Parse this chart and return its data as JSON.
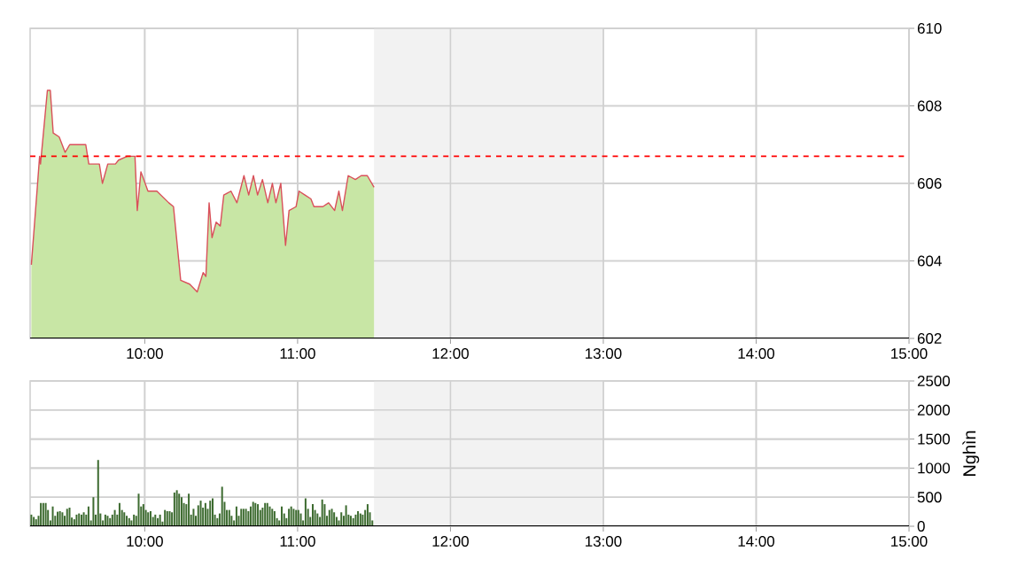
{
  "chart_data": [
    {
      "type": "area",
      "xlim": [
        9.25,
        15
      ],
      "ylim": [
        602,
        610
      ],
      "yticks": [
        602,
        604,
        606,
        608,
        610
      ],
      "xticks": [
        {
          "value": 10,
          "label": "10:00"
        },
        {
          "value": 11,
          "label": "11:00"
        },
        {
          "value": 12,
          "label": "12:00"
        },
        {
          "value": 13,
          "label": "13:00"
        },
        {
          "value": 14,
          "label": "14:00"
        },
        {
          "value": 15,
          "label": "15:00"
        }
      ],
      "grid": true,
      "ref_lines": [
        {
          "axis": "y",
          "value": 606.7,
          "color": "#ff0000",
          "line_style": "dashed"
        }
      ],
      "bands": [
        {
          "axis": "x",
          "from": 11.5,
          "to": 13,
          "color": "#f2f2f2"
        }
      ],
      "x": [
        9.258,
        9.297,
        9.312,
        9.318,
        9.363,
        9.382,
        9.401,
        9.44,
        9.479,
        9.509,
        9.556,
        9.614,
        9.634,
        9.703,
        9.723,
        9.758,
        9.808,
        9.828,
        9.886,
        9.936,
        9.951,
        9.975,
        10.021,
        10.079,
        10.157,
        10.188,
        10.235,
        10.294,
        10.343,
        10.382,
        10.4,
        10.421,
        10.44,
        10.467,
        10.494,
        10.517,
        10.564,
        10.603,
        10.649,
        10.68,
        10.711,
        10.738,
        10.77,
        10.805,
        10.835,
        10.858,
        10.89,
        10.921,
        10.944,
        10.99,
        11.009,
        11.048,
        11.087,
        11.107,
        11.165,
        11.203,
        11.242,
        11.27,
        11.293,
        11.331,
        11.378,
        11.416,
        11.456,
        11.5
      ],
      "series": [
        {
          "color": "#c8e6a5",
          "values": [
            603.9,
            605.9,
            606.7,
            606.5,
            608.4,
            608.4,
            607.3,
            607.2,
            606.8,
            607.0,
            607.0,
            607.0,
            606.5,
            606.5,
            606.0,
            606.5,
            606.5,
            606.6,
            606.7,
            606.7,
            605.3,
            606.3,
            605.8,
            605.8,
            605.5,
            605.4,
            603.5,
            603.4,
            603.2,
            603.7,
            603.6,
            605.5,
            604.6,
            605.0,
            604.9,
            605.7,
            605.8,
            605.5,
            606.2,
            605.7,
            606.2,
            605.7,
            606.1,
            605.5,
            606.0,
            605.5,
            606.0,
            604.4,
            605.3,
            605.4,
            605.8,
            605.7,
            605.6,
            605.4,
            605.4,
            605.5,
            605.3,
            605.8,
            605.3,
            606.2,
            606.1,
            606.2,
            606.2,
            605.9
          ]
        },
        {
          "type": "line",
          "color": "#d9505a",
          "values": [
            603.9,
            605.9,
            606.7,
            606.5,
            608.4,
            608.4,
            607.3,
            607.2,
            606.8,
            607.0,
            607.0,
            607.0,
            606.5,
            606.5,
            606.0,
            606.5,
            606.5,
            606.6,
            606.7,
            606.7,
            605.3,
            606.3,
            605.8,
            605.8,
            605.5,
            605.4,
            603.5,
            603.4,
            603.2,
            603.7,
            603.6,
            605.5,
            604.6,
            605.0,
            604.9,
            605.7,
            605.8,
            605.5,
            606.2,
            605.7,
            606.2,
            605.7,
            606.1,
            605.5,
            606.0,
            605.5,
            606.0,
            604.4,
            605.3,
            605.4,
            605.8,
            605.7,
            605.6,
            605.4,
            605.4,
            605.5,
            605.3,
            605.8,
            605.3,
            606.2,
            606.1,
            606.2,
            606.2,
            605.9
          ]
        }
      ]
    },
    {
      "type": "bar",
      "xlim": [
        9.25,
        15
      ],
      "ylim": [
        0,
        2500
      ],
      "yticks": [
        0,
        500,
        1000,
        1500,
        2000,
        2500
      ],
      "ylabel": "Nghìn",
      "xticks": [
        {
          "value": 10,
          "label": "10:00"
        },
        {
          "value": 11,
          "label": "11:00"
        },
        {
          "value": 12,
          "label": "12:00"
        },
        {
          "value": 13,
          "label": "13:00"
        },
        {
          "value": 14,
          "label": "14:00"
        },
        {
          "value": 15,
          "label": "15:00"
        }
      ],
      "grid": true,
      "bands": [
        {
          "axis": "x",
          "from": 11.5,
          "to": 13,
          "color": "#f2f2f2"
        }
      ],
      "x": [
        9.258,
        9.274,
        9.289,
        9.305,
        9.32,
        9.336,
        9.352,
        9.367,
        9.383,
        9.398,
        9.414,
        9.43,
        9.445,
        9.461,
        9.476,
        9.492,
        9.508,
        9.523,
        9.539,
        9.554,
        9.57,
        9.586,
        9.601,
        9.617,
        9.632,
        9.648,
        9.664,
        9.679,
        9.695,
        9.71,
        9.726,
        9.742,
        9.757,
        9.773,
        9.788,
        9.804,
        9.82,
        9.835,
        9.851,
        9.866,
        9.882,
        9.898,
        9.913,
        9.929,
        9.944,
        9.96,
        9.976,
        9.991,
        10.007,
        10.022,
        10.038,
        10.054,
        10.069,
        10.085,
        10.1,
        10.116,
        10.132,
        10.147,
        10.163,
        10.178,
        10.194,
        10.21,
        10.225,
        10.241,
        10.256,
        10.272,
        10.288,
        10.303,
        10.319,
        10.334,
        10.35,
        10.366,
        10.381,
        10.397,
        10.412,
        10.428,
        10.444,
        10.459,
        10.475,
        10.49,
        10.506,
        10.522,
        10.537,
        10.553,
        10.568,
        10.584,
        10.6,
        10.615,
        10.631,
        10.646,
        10.662,
        10.678,
        10.693,
        10.709,
        10.724,
        10.74,
        10.756,
        10.771,
        10.787,
        10.802,
        10.818,
        10.834,
        10.849,
        10.865,
        10.88,
        10.896,
        10.912,
        10.927,
        10.943,
        10.958,
        10.974,
        10.99,
        11.005,
        11.021,
        11.036,
        11.052,
        11.068,
        11.083,
        11.099,
        11.114,
        11.13,
        11.146,
        11.161,
        11.177,
        11.192,
        11.208,
        11.224,
        11.239,
        11.255,
        11.27,
        11.286,
        11.302,
        11.317,
        11.333,
        11.348,
        11.364,
        11.38,
        11.395,
        11.411,
        11.426,
        11.442,
        11.458,
        11.473,
        11.489
      ],
      "series": [
        {
          "color": "#3d6b30",
          "values": [
            200,
            160,
            120,
            180,
            400,
            400,
            400,
            280,
            100,
            340,
            180,
            250,
            260,
            240,
            180,
            300,
            320,
            150,
            120,
            200,
            220,
            200,
            240,
            200,
            340,
            100,
            500,
            200,
            1140,
            220,
            100,
            200,
            180,
            140,
            200,
            280,
            200,
            400,
            280,
            240,
            180,
            140,
            100,
            200,
            180,
            560,
            340,
            380,
            280,
            240,
            260,
            160,
            200,
            140,
            200,
            80,
            280,
            260,
            260,
            240,
            580,
            620,
            560,
            500,
            400,
            380,
            560,
            200,
            300,
            180,
            360,
            440,
            320,
            400,
            300,
            440,
            480,
            200,
            140,
            220,
            680,
            420,
            280,
            280,
            180,
            100,
            340,
            180,
            300,
            300,
            300,
            260,
            340,
            420,
            400,
            380,
            280,
            320,
            400,
            400,
            340,
            300,
            260,
            140,
            100,
            340,
            220,
            140,
            300,
            340,
            300,
            280,
            280,
            220,
            100,
            480,
            300,
            160,
            380,
            280,
            220,
            160,
            460,
            380,
            180,
            280,
            300,
            240,
            160,
            100,
            240,
            180,
            360,
            200,
            180,
            140,
            200,
            260,
            220,
            200,
            280,
            380,
            240,
            100
          ]
        }
      ]
    }
  ]
}
